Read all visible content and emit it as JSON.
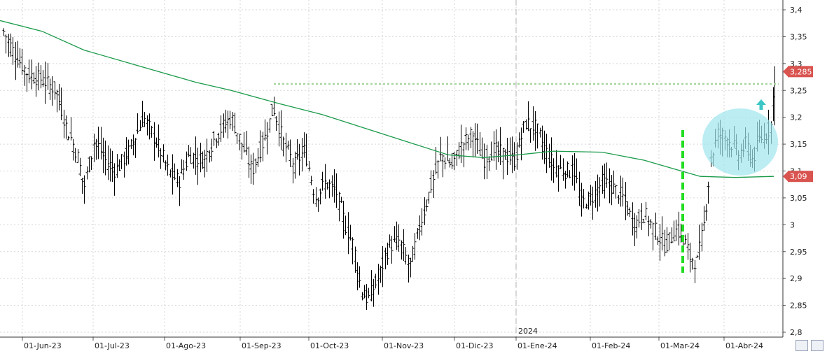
{
  "chart_data": {
    "type": "ohlc",
    "year_label": "2024",
    "x_ticks": [
      "01-Jun-23",
      "01-Jul-23",
      "01-Ago-23",
      "01-Sep-23",
      "01-Oct-23",
      "01-Nov-23",
      "01-Dic-23",
      "01-Ene-24",
      "01-Feb-24",
      "01-Mar-24",
      "01-Abr-24"
    ],
    "y_ticks": [
      "3,4",
      "3,35",
      "3,3",
      "3,25",
      "3,2",
      "3,15",
      "3,1",
      "3,05",
      "3",
      "2,95",
      "2,9",
      "2,85",
      "2,8"
    ],
    "ylim": [
      2.8,
      3.4
    ],
    "last_price_label": "3,285",
    "last_price": 3.285,
    "ma_price_label": "3,09",
    "ma_price": 3.09,
    "resistance_level": 3.262,
    "colors": {
      "bars": "#000000",
      "moving_average": "#1a9a4a",
      "resistance_line": "#a9d6a0",
      "marker_line": "#22dd22",
      "circle": "#9ee6ee",
      "arrow": "#3cc6c6",
      "price_badge": "#d9534f"
    },
    "moving_average": [
      [
        0,
        3.38
      ],
      [
        60,
        3.36
      ],
      [
        120,
        3.325
      ],
      [
        200,
        3.295
      ],
      [
        280,
        3.265
      ],
      [
        330,
        3.25
      ],
      [
        400,
        3.225
      ],
      [
        460,
        3.205
      ],
      [
        520,
        3.18
      ],
      [
        580,
        3.155
      ],
      [
        640,
        3.13
      ],
      [
        690,
        3.125
      ],
      [
        740,
        3.13
      ],
      [
        790,
        3.137
      ],
      [
        860,
        3.135
      ],
      [
        920,
        3.12
      ],
      [
        960,
        3.105
      ],
      [
        1000,
        3.09
      ],
      [
        1050,
        3.088
      ],
      [
        1105,
        3.09
      ]
    ],
    "close_path": [
      [
        5,
        3.36
      ],
      [
        20,
        3.32
      ],
      [
        40,
        3.28
      ],
      [
        60,
        3.27
      ],
      [
        80,
        3.25
      ],
      [
        95,
        3.18
      ],
      [
        110,
        3.13
      ],
      [
        120,
        3.07
      ],
      [
        135,
        3.16
      ],
      [
        150,
        3.12
      ],
      [
        165,
        3.1
      ],
      [
        185,
        3.14
      ],
      [
        205,
        3.2
      ],
      [
        225,
        3.15
      ],
      [
        240,
        3.1
      ],
      [
        255,
        3.08
      ],
      [
        270,
        3.13
      ],
      [
        290,
        3.12
      ],
      [
        310,
        3.17
      ],
      [
        330,
        3.2
      ],
      [
        345,
        3.15
      ],
      [
        360,
        3.1
      ],
      [
        380,
        3.17
      ],
      [
        390,
        3.22
      ],
      [
        405,
        3.15
      ],
      [
        420,
        3.11
      ],
      [
        435,
        3.14
      ],
      [
        450,
        3.05
      ],
      [
        465,
        3.08
      ],
      [
        480,
        3.06
      ],
      [
        495,
        2.99
      ],
      [
        505,
        2.96
      ],
      [
        515,
        2.88
      ],
      [
        525,
        2.86
      ],
      [
        540,
        2.9
      ],
      [
        555,
        2.96
      ],
      [
        570,
        2.97
      ],
      [
        585,
        2.92
      ],
      [
        600,
        3.0
      ],
      [
        615,
        3.07
      ],
      [
        630,
        3.13
      ],
      [
        645,
        3.11
      ],
      [
        660,
        3.15
      ],
      [
        675,
        3.17
      ],
      [
        690,
        3.12
      ],
      [
        705,
        3.14
      ],
      [
        720,
        3.13
      ],
      [
        735,
        3.12
      ],
      [
        750,
        3.19
      ],
      [
        765,
        3.18
      ],
      [
        775,
        3.15
      ],
      [
        790,
        3.11
      ],
      [
        805,
        3.1
      ],
      [
        820,
        3.1
      ],
      [
        830,
        3.04
      ],
      [
        845,
        3.05
      ],
      [
        860,
        3.08
      ],
      [
        875,
        3.07
      ],
      [
        890,
        3.05
      ],
      [
        905,
        3.0
      ],
      [
        920,
        3.02
      ],
      [
        935,
        2.99
      ],
      [
        950,
        2.96
      ],
      [
        965,
        2.99
      ],
      [
        975,
        2.98
      ],
      [
        985,
        2.94
      ],
      [
        995,
        2.93
      ],
      [
        1005,
        3.0
      ],
      [
        1015,
        3.12
      ],
      [
        1025,
        3.17
      ],
      [
        1040,
        3.16
      ],
      [
        1055,
        3.13
      ],
      [
        1065,
        3.15
      ],
      [
        1075,
        3.12
      ],
      [
        1085,
        3.16
      ],
      [
        1095,
        3.17
      ],
      [
        1102,
        3.19
      ],
      [
        1106,
        3.285
      ]
    ]
  }
}
